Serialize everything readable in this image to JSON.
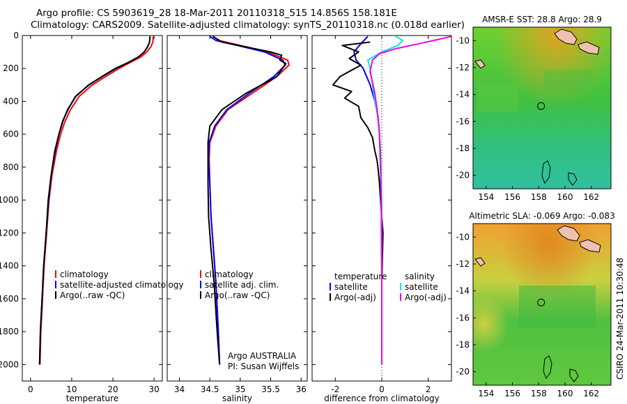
{
  "header": {
    "line1": "Argo profile: CS 5903619_28 18-Mar-2011 20110318_515 14.856S 158.181E",
    "line2": "Climatology: CARS2009. Satellite-adjusted climatology: synTS_20110318.nc (0.018d earlier)"
  },
  "side_label": "CSIRO 24-Mar-2011 10:30:48",
  "colors": {
    "climatology": "#ff0000",
    "satellite": "#0000ff",
    "argo": "#000000",
    "sat_sal": "#00e5ee",
    "argo_sal": "#ee00ee"
  },
  "chart_data": [
    {
      "type": "line",
      "id": "temperature",
      "xlabel": "temperature",
      "xlim": [
        -2,
        32
      ],
      "ylim": [
        2100,
        0
      ],
      "xticks": [
        0,
        10,
        20,
        30
      ],
      "yticks": [
        0,
        200,
        400,
        600,
        800,
        1000,
        1200,
        1400,
        1600,
        1800,
        2000
      ],
      "legend": [
        "climatology",
        "satellite-adjusted climatology",
        "Argo(..raw -QC)"
      ],
      "series": [
        {
          "name": "climatology",
          "color": "#ff0000",
          "x": [
            29.8,
            29.7,
            29.2,
            28.2,
            26.8,
            24.5,
            21.5,
            18.2,
            15.0,
            11.8,
            9.7,
            8.4,
            7.3,
            6.3,
            5.2,
            4.5,
            3.9,
            3.3,
            2.9,
            2.5,
            2.3
          ],
          "y": [
            5,
            40,
            70,
            100,
            130,
            160,
            200,
            250,
            300,
            370,
            450,
            520,
            600,
            700,
            850,
            1000,
            1200,
            1400,
            1600,
            1800,
            2000
          ]
        },
        {
          "name": "satellite",
          "color": "#0000ff",
          "x": [
            29.0,
            28.9,
            28.4,
            27.6,
            26.2,
            24.0,
            20.8,
            17.4,
            14.1,
            11.0,
            9.0,
            7.9,
            6.9,
            6.0,
            5.0,
            4.4,
            3.8,
            3.2,
            2.8,
            2.4,
            2.2
          ],
          "y": [
            5,
            40,
            70,
            100,
            130,
            160,
            200,
            250,
            300,
            370,
            450,
            520,
            600,
            700,
            850,
            1000,
            1200,
            1400,
            1600,
            1800,
            2000
          ]
        },
        {
          "name": "Argo",
          "color": "#000000",
          "x": [
            29.0,
            28.9,
            28.4,
            27.6,
            26.2,
            24.1,
            20.6,
            17.3,
            14.2,
            10.9,
            9.1,
            7.8,
            6.9,
            5.9,
            5.0,
            4.3,
            3.8,
            3.2,
            2.8,
            2.4,
            2.2
          ],
          "y": [
            5,
            40,
            70,
            100,
            130,
            160,
            200,
            250,
            300,
            370,
            450,
            520,
            600,
            700,
            850,
            1000,
            1200,
            1400,
            1600,
            1800,
            2000
          ]
        }
      ]
    },
    {
      "type": "line",
      "id": "salinity",
      "xlabel": "salinity",
      "xlim": [
        33.8,
        36.1
      ],
      "ylim": [
        2100,
        0
      ],
      "xticks": [
        34,
        34.5,
        35,
        35.5,
        36
      ],
      "legend": [
        "climatology",
        "satellite adj. clim.",
        "Argo(..raw -QC)"
      ],
      "annotation": [
        "Argo AUSTRALIA",
        "PI: Susan Wijffels"
      ],
      "series": [
        {
          "name": "climatology",
          "color": "#ff0000",
          "x": [
            34.55,
            34.65,
            35.0,
            35.45,
            35.78,
            35.8,
            35.6,
            35.2,
            34.8,
            34.6,
            34.5,
            34.49,
            34.5,
            34.52,
            34.56,
            34.6,
            34.64,
            34.66
          ],
          "y": [
            5,
            30,
            60,
            100,
            150,
            180,
            250,
            350,
            450,
            550,
            650,
            750,
            900,
            1100,
            1300,
            1500,
            1800,
            2000
          ]
        },
        {
          "name": "satellite",
          "color": "#0000ff",
          "x": [
            34.5,
            34.6,
            34.95,
            35.4,
            35.7,
            35.74,
            35.55,
            35.15,
            34.78,
            34.58,
            34.49,
            34.48,
            34.5,
            34.52,
            34.56,
            34.6,
            34.64,
            34.66
          ],
          "y": [
            5,
            30,
            60,
            100,
            150,
            180,
            250,
            350,
            450,
            550,
            650,
            750,
            900,
            1100,
            1300,
            1500,
            1800,
            2000
          ]
        },
        {
          "name": "Argo",
          "color": "#000000",
          "x": [
            34.55,
            34.7,
            35.1,
            35.5,
            35.68,
            35.65,
            35.75,
            35.6,
            35.1,
            34.7,
            34.5,
            34.47,
            34.47,
            34.48,
            34.52,
            34.57,
            34.62,
            34.66
          ],
          "y": [
            5,
            40,
            70,
            100,
            120,
            150,
            170,
            250,
            350,
            450,
            550,
            650,
            900,
            1100,
            1300,
            1500,
            1800,
            2000
          ]
        }
      ]
    },
    {
      "type": "line",
      "id": "difference",
      "xlabel": "difference from climatology",
      "xlim": [
        -3,
        3
      ],
      "ylim": [
        2100,
        0
      ],
      "xticks": [
        -2,
        0,
        2
      ],
      "legend_left_title": "temperature",
      "legend_right_title": "salinity",
      "legend_left": [
        "satellite",
        "Argo(-adj)"
      ],
      "legend_right": [
        "satellite",
        "Argo(-adj)"
      ],
      "series": [
        {
          "name": "temp satellite",
          "color": "#0000ff",
          "x": [
            -0.6,
            -0.9,
            -1.2,
            -1.1,
            -0.8,
            -0.5,
            -0.3,
            -0.15,
            -0.1,
            -0.05,
            -0.02,
            0,
            0
          ],
          "y": [
            5,
            50,
            100,
            150,
            200,
            300,
            400,
            500,
            600,
            800,
            1000,
            1500,
            2000
          ]
        },
        {
          "name": "temp Argo",
          "color": "#000000",
          "x": [
            -0.5,
            -1.7,
            -1.0,
            -1.4,
            -0.9,
            -1.8,
            -2.1,
            -1.3,
            -1.6,
            -1.0,
            -0.9,
            -0.6,
            -0.4,
            -0.3,
            -0.2,
            -0.15,
            -0.1,
            -0.05,
            0,
            0.05,
            0,
            0
          ],
          "y": [
            40,
            60,
            100,
            140,
            180,
            250,
            300,
            340,
            380,
            430,
            500,
            560,
            620,
            700,
            760,
            820,
            900,
            1000,
            1100,
            1200,
            1500,
            2000
          ]
        },
        {
          "name": "sal satellite",
          "color": "#00e5ee",
          "x": [
            0.6,
            0.9,
            0.7,
            0.0,
            -0.6,
            -0.5,
            -0.4,
            -0.3,
            -0.15,
            -0.05,
            0,
            0
          ],
          "y": [
            5,
            30,
            60,
            100,
            150,
            200,
            300,
            400,
            500,
            700,
            1000,
            2000
          ]
        },
        {
          "name": "sal Argo",
          "color": "#ee00ee",
          "x": [
            3.0,
            2.4,
            1.6,
            0.6,
            -0.1,
            -0.4,
            -0.5,
            -0.3,
            -0.2,
            -0.1,
            -0.05,
            0,
            0
          ],
          "y": [
            5,
            25,
            50,
            80,
            110,
            150,
            220,
            350,
            450,
            600,
            800,
            1200,
            2000
          ]
        }
      ]
    },
    {
      "type": "heatmap",
      "id": "sst-map",
      "title": "AMSR-E SST: 28.8 Argo: 28.9",
      "xlim": [
        153,
        163.5
      ],
      "ylim": [
        -21,
        -9
      ],
      "xticks": [
        154,
        156,
        158,
        160,
        162
      ],
      "yticks": [
        -10,
        -12,
        -14,
        -16,
        -18,
        -20
      ],
      "argo_position": [
        158.181,
        -14.856
      ]
    },
    {
      "type": "heatmap",
      "id": "sla-map",
      "title": "Altimetric SLA: -0.069 Argo: -0.083",
      "xlim": [
        153,
        163.5
      ],
      "ylim": [
        -21,
        -9
      ],
      "xticks": [
        154,
        156,
        158,
        160,
        162
      ],
      "yticks": [
        -10,
        -12,
        -14,
        -16,
        -18,
        -20
      ],
      "argo_position": [
        158.181,
        -14.856
      ]
    }
  ]
}
